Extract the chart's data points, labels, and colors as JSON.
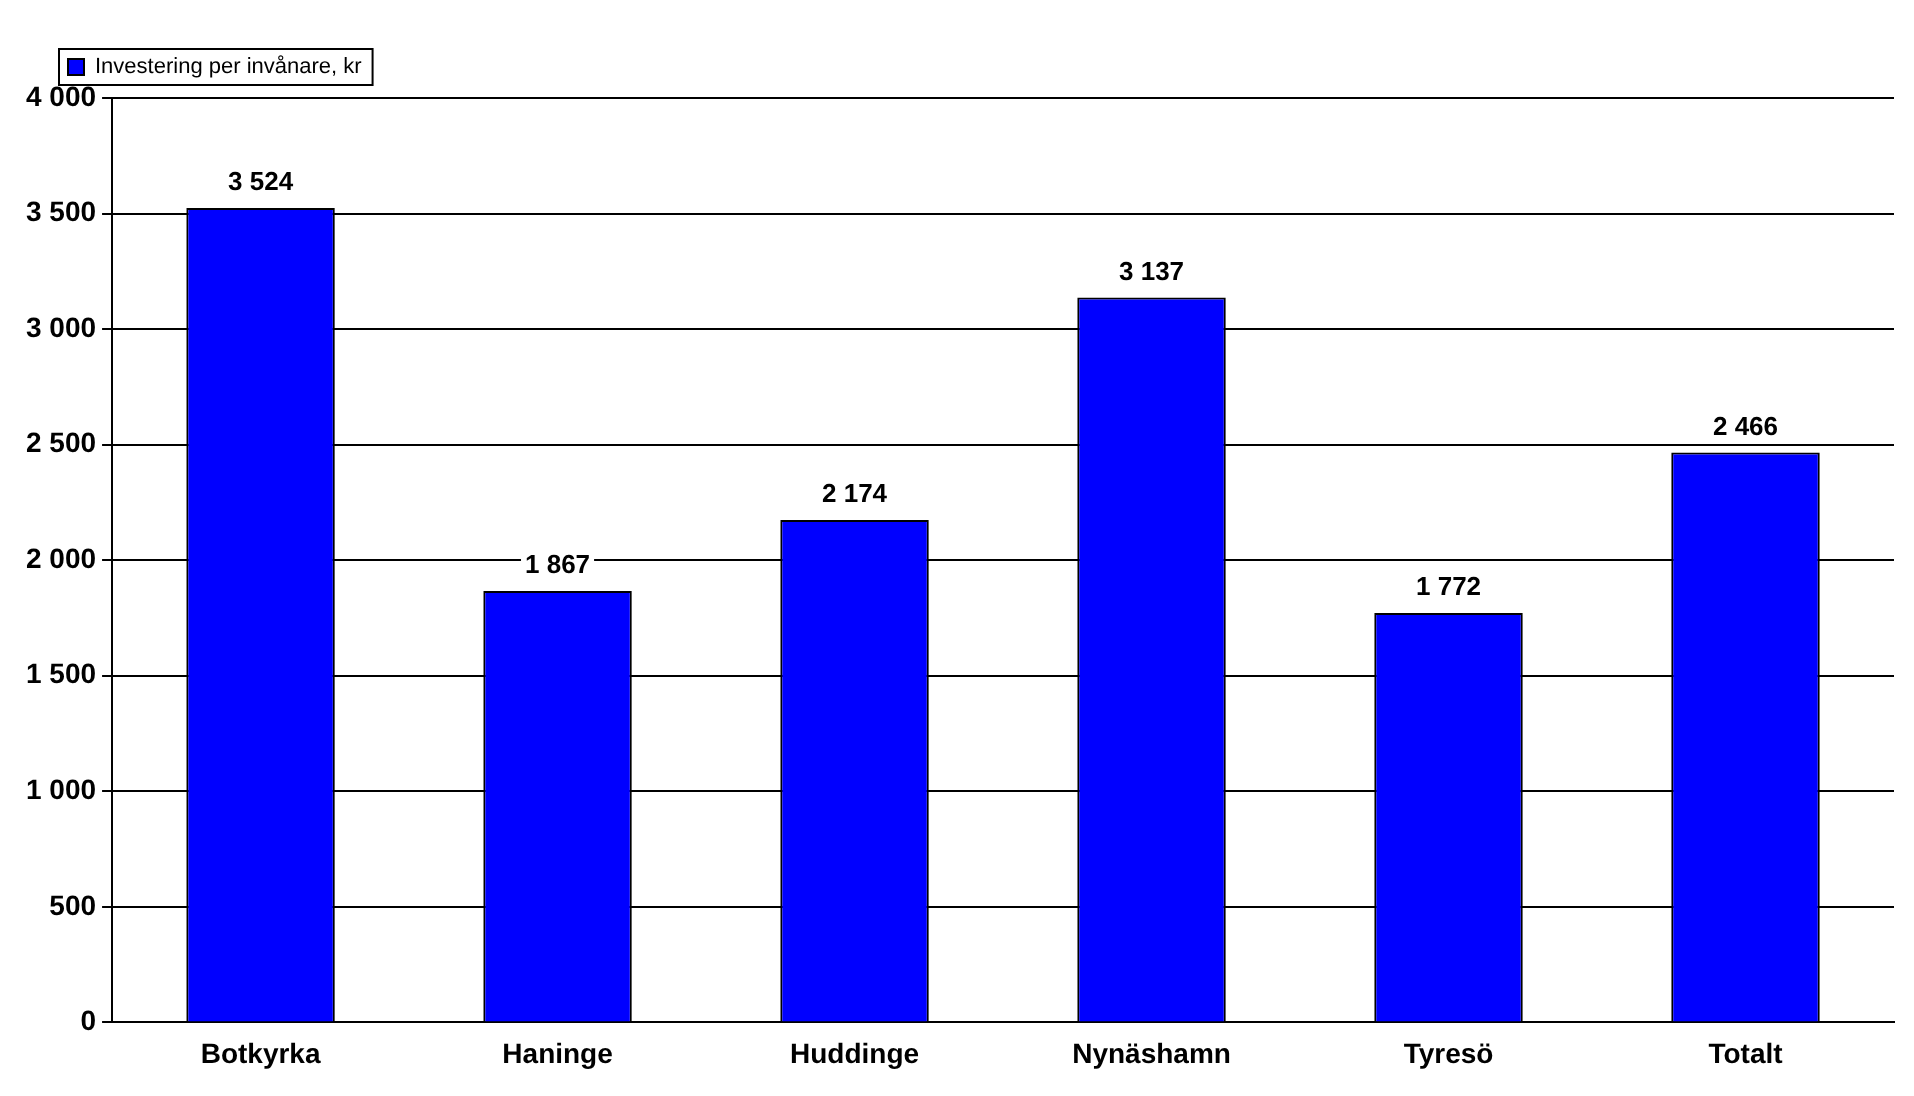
{
  "chart_data": {
    "type": "bar",
    "categories": [
      "Botkyrka",
      "Haninge",
      "Huddinge",
      "Nynäshamn",
      "Tyresö",
      "Totalt"
    ],
    "series": [
      {
        "name": "Investering per invånare, kr",
        "color": "#0000ff",
        "values": [
          3524,
          1867,
          2174,
          3137,
          1772,
          2466
        ],
        "value_labels": [
          "3 524",
          "1 867",
          "2 174",
          "3 137",
          "1 772",
          "2 466"
        ]
      }
    ],
    "ylim": [
      0,
      4000
    ],
    "yticks": [
      {
        "value": 0,
        "label": "0"
      },
      {
        "value": 500,
        "label": "500"
      },
      {
        "value": 1000,
        "label": "1 000"
      },
      {
        "value": 1500,
        "label": "1 500"
      },
      {
        "value": 2000,
        "label": "2 000"
      },
      {
        "value": 2500,
        "label": "2 500"
      },
      {
        "value": 3000,
        "label": "3 000"
      },
      {
        "value": 3500,
        "label": "3 500"
      },
      {
        "value": 4000,
        "label": "4 000"
      }
    ],
    "grid": "y",
    "legend": "top left"
  }
}
